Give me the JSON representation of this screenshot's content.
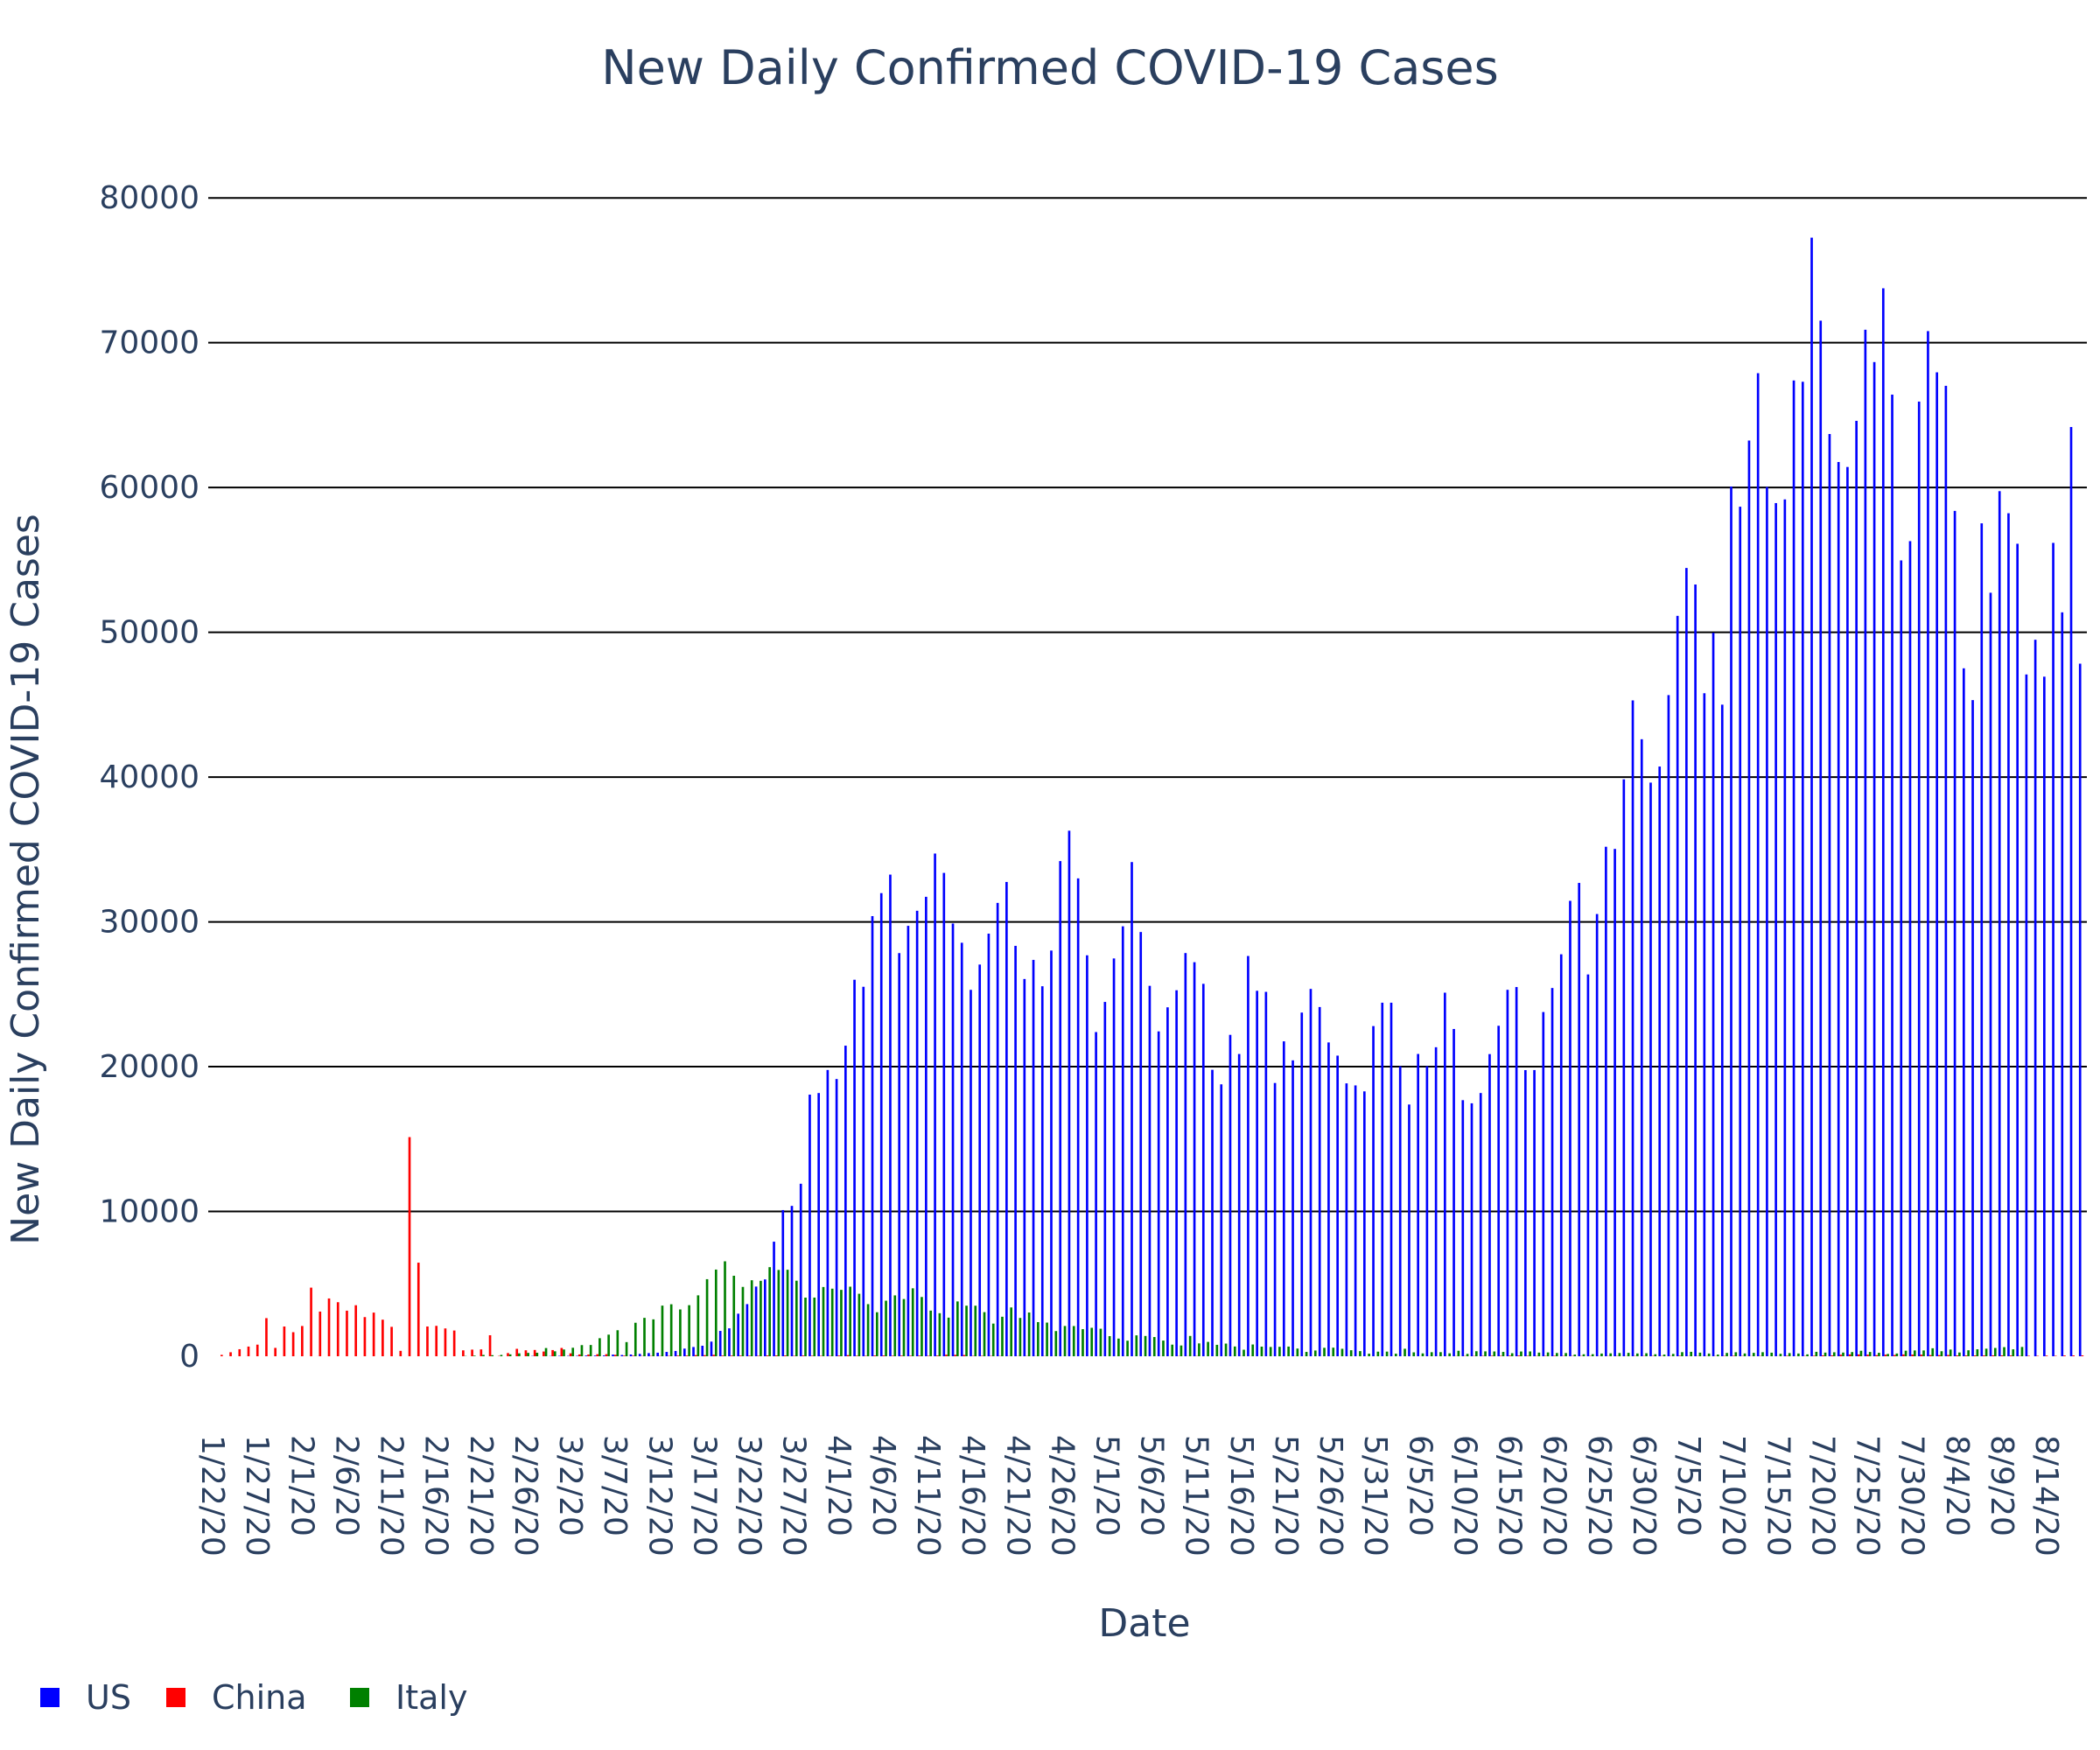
{
  "chart_data": {
    "type": "bar",
    "title": "New Daily Confirmed COVID-19 Cases",
    "xlabel": "Date",
    "ylabel": "New Daily Confirmed COVID-19 Cases",
    "x_start": "1/22/20",
    "x_end": "8/16/20",
    "ylim": [
      0,
      84000
    ],
    "yticks": [
      0,
      10000,
      20000,
      30000,
      40000,
      50000,
      60000,
      70000,
      80000
    ],
    "xtick_labels": [
      "1/22/20",
      "1/27/20",
      "2/1/20",
      "2/6/20",
      "2/11/20",
      "2/16/20",
      "2/21/20",
      "2/26/20",
      "3/2/20",
      "3/7/20",
      "3/12/20",
      "3/17/20",
      "3/22/20",
      "3/27/20",
      "4/1/20",
      "4/6/20",
      "4/11/20",
      "4/16/20",
      "4/21/20",
      "4/26/20",
      "5/1/20",
      "5/6/20",
      "5/11/20",
      "5/16/20",
      "5/21/20",
      "5/26/20",
      "5/31/20",
      "6/5/20",
      "6/10/20",
      "6/15/20",
      "6/20/20",
      "6/25/20",
      "6/30/20",
      "7/5/20",
      "7/10/20",
      "7/15/20",
      "7/20/20",
      "7/25/20",
      "7/30/20",
      "8/4/20",
      "8/9/20",
      "8/14/20"
    ],
    "grid": true,
    "legend_position": "bottom-left",
    "series": [
      {
        "name": "US",
        "color": "#0000ff",
        "values": [
          0,
          0,
          1,
          0,
          3,
          0,
          0,
          0,
          0,
          2,
          1,
          0,
          3,
          0,
          0,
          0,
          0,
          0,
          0,
          0,
          0,
          0,
          0,
          1,
          0,
          0,
          0,
          0,
          0,
          0,
          0,
          0,
          0,
          0,
          0,
          0,
          20,
          0,
          16,
          28,
          26,
          30,
          50,
          47,
          52,
          113,
          87,
          122,
          163,
          218,
          246,
          300,
          366,
          529,
          639,
          726,
          1012,
          1750,
          1929,
          2940,
          3600,
          4813,
          5307,
          7913,
          10095,
          10384,
          11914,
          18069,
          18179,
          19770,
          19148,
          21451,
          26003,
          25517,
          30398,
          31986,
          33264,
          27844,
          29728,
          30767,
          31732,
          34719,
          33383,
          29886,
          28559,
          25306,
          27053,
          29188,
          31311,
          32757,
          28344,
          26055,
          27374,
          25554,
          28020,
          34199,
          36297,
          33004,
          27691,
          22390,
          24472,
          27474,
          29693,
          34131,
          29301,
          25583,
          22437,
          24099,
          25278,
          27848,
          27216,
          25722,
          19783,
          18780,
          22197,
          20875,
          27644,
          25242,
          25167,
          18873,
          21749,
          20436,
          23736,
          25370,
          24119,
          21673,
          20762,
          18847,
          18706,
          18293,
          22804,
          24418,
          24418,
          20027,
          17386,
          20878,
          20032,
          21342,
          25110,
          22603,
          17687,
          17470,
          18181,
          20868,
          22825,
          25309,
          25499,
          19761,
          19764,
          23773,
          25433,
          27762,
          31454,
          32691,
          26369,
          30543,
          35188,
          35039,
          39844,
          45297,
          42614,
          39618,
          40729,
          45662,
          51135,
          54442,
          53301,
          45791,
          49968,
          45001,
          60066,
          58674,
          63243,
          67895,
          60036,
          58923,
          59178,
          67393,
          67303,
          77255,
          71523,
          63694,
          61760,
          61418,
          64603,
          70896,
          68663,
          73758,
          66415,
          54965,
          56295,
          65934,
          70801,
          67954,
          67023,
          58384,
          47512,
          45317,
          57525,
          52732,
          59749,
          58222,
          56114,
          47088,
          49485,
          46935,
          56174,
          51377,
          64177,
          47832
        ]
      },
      {
        "name": "China",
        "color": "#ff0000",
        "values": [
          0,
          95,
          277,
          486,
          669,
          802,
          2632,
          578,
          2054,
          1661,
          2089,
          4739,
          3086,
          3991,
          3733,
          3147,
          3523,
          2704,
          3015,
          2525,
          2032,
          373,
          15136,
          6463,
          2055,
          2100,
          1921,
          1777,
          408,
          458,
          473,
          1451,
          21,
          219,
          513,
          412,
          434,
          327,
          427,
          573,
          202,
          125,
          119,
          139,
          143,
          99,
          44,
          40,
          19,
          24,
          19,
          26,
          45,
          47,
          80,
          78,
          102,
          46,
          46,
          45,
          39,
          31,
          54,
          55,
          56,
          31,
          50,
          36,
          30,
          30,
          48,
          79,
          35,
          31,
          54,
          55,
          36,
          47,
          39,
          43,
          31,
          46,
          108,
          99,
          89,
          26,
          30,
          26,
          20,
          12,
          11,
          16,
          11,
          12,
          6,
          4,
          3,
          0,
          2,
          4,
          2,
          6,
          6,
          3,
          2,
          3,
          6,
          4,
          14,
          8,
          17,
          1,
          2,
          3,
          4,
          8,
          6,
          0,
          2,
          2,
          2,
          11,
          5,
          2,
          3,
          4,
          2,
          4,
          1,
          2,
          3,
          1,
          3,
          1,
          1,
          5,
          7,
          4,
          6,
          13,
          19,
          21,
          26,
          36,
          32,
          44,
          49,
          30,
          19,
          27,
          34,
          22,
          20,
          20,
          21,
          12,
          15,
          19,
          12,
          20,
          22,
          24,
          19,
          17,
          33,
          12,
          15,
          14,
          15,
          24,
          35,
          19,
          11,
          20,
          4,
          8,
          35,
          8,
          22,
          39,
          61,
          61,
          106,
          128,
          126,
          111,
          78,
          110,
          88,
          126,
          114,
          110,
          81,
          79,
          90,
          57,
          56,
          57,
          62,
          63,
          60,
          56,
          24,
          33,
          27,
          45,
          30,
          56,
          58,
          61
        ]
      },
      {
        "name": "Italy",
        "color": "#008000",
        "values": [
          0,
          0,
          0,
          0,
          0,
          0,
          0,
          0,
          0,
          2,
          0,
          0,
          0,
          0,
          0,
          0,
          0,
          1,
          0,
          0,
          0,
          0,
          0,
          0,
          0,
          0,
          0,
          0,
          17,
          42,
          93,
          74,
          93,
          131,
          202,
          233,
          240,
          566,
          342,
          466,
          587,
          769,
          778,
          1247,
          1492,
          1797,
          977,
          2313,
          2651,
          2547,
          3497,
          3590,
          3233,
          3526,
          4207,
          5322,
          5986,
          6557,
          5560,
          4789,
          5249,
          5210,
          6153,
          5959,
          5974,
          5217,
          4050,
          4053,
          4782,
          4668,
          4585,
          4805,
          4316,
          3599,
          3039,
          3836,
          4204,
          3951,
          4694,
          4092,
          3153,
          2972,
          2667,
          3786,
          3493,
          3491,
          3047,
          2256,
          2729,
          3370,
          2646,
          3021,
          2357,
          2324,
          1739,
          2091,
          2086,
          1872,
          1965,
          1900,
          1389,
          1221,
          1075,
          1444,
          1401,
          1327,
          1083,
          802,
          744,
          1402,
          888,
          992,
          789,
          875,
          675,
          451,
          813,
          665,
          642,
          652,
          669,
          531,
          300,
          397,
          584,
          593,
          516,
          416,
          355,
          178,
          318,
          321,
          177,
          518,
          270,
          197,
          280,
          283,
          202,
          379,
          163,
          346,
          338,
          331,
          300,
          210,
          329,
          333,
          251,
          262,
          224,
          221,
          113,
          136,
          142,
          187,
          201,
          223,
          235,
          192,
          208,
          138,
          114,
          163,
          282,
          306,
          249,
          188,
          114,
          229,
          276,
          193,
          234,
          280,
          247,
          169,
          218,
          190,
          130,
          306,
          252,
          275,
          255,
          289,
          379,
          295,
          239,
          159,
          190,
          384,
          401,
          402,
          552,
          347,
          463,
          259,
          412,
          481,
          523,
          574,
          629,
          479,
          642
        ]
      }
    ]
  }
}
